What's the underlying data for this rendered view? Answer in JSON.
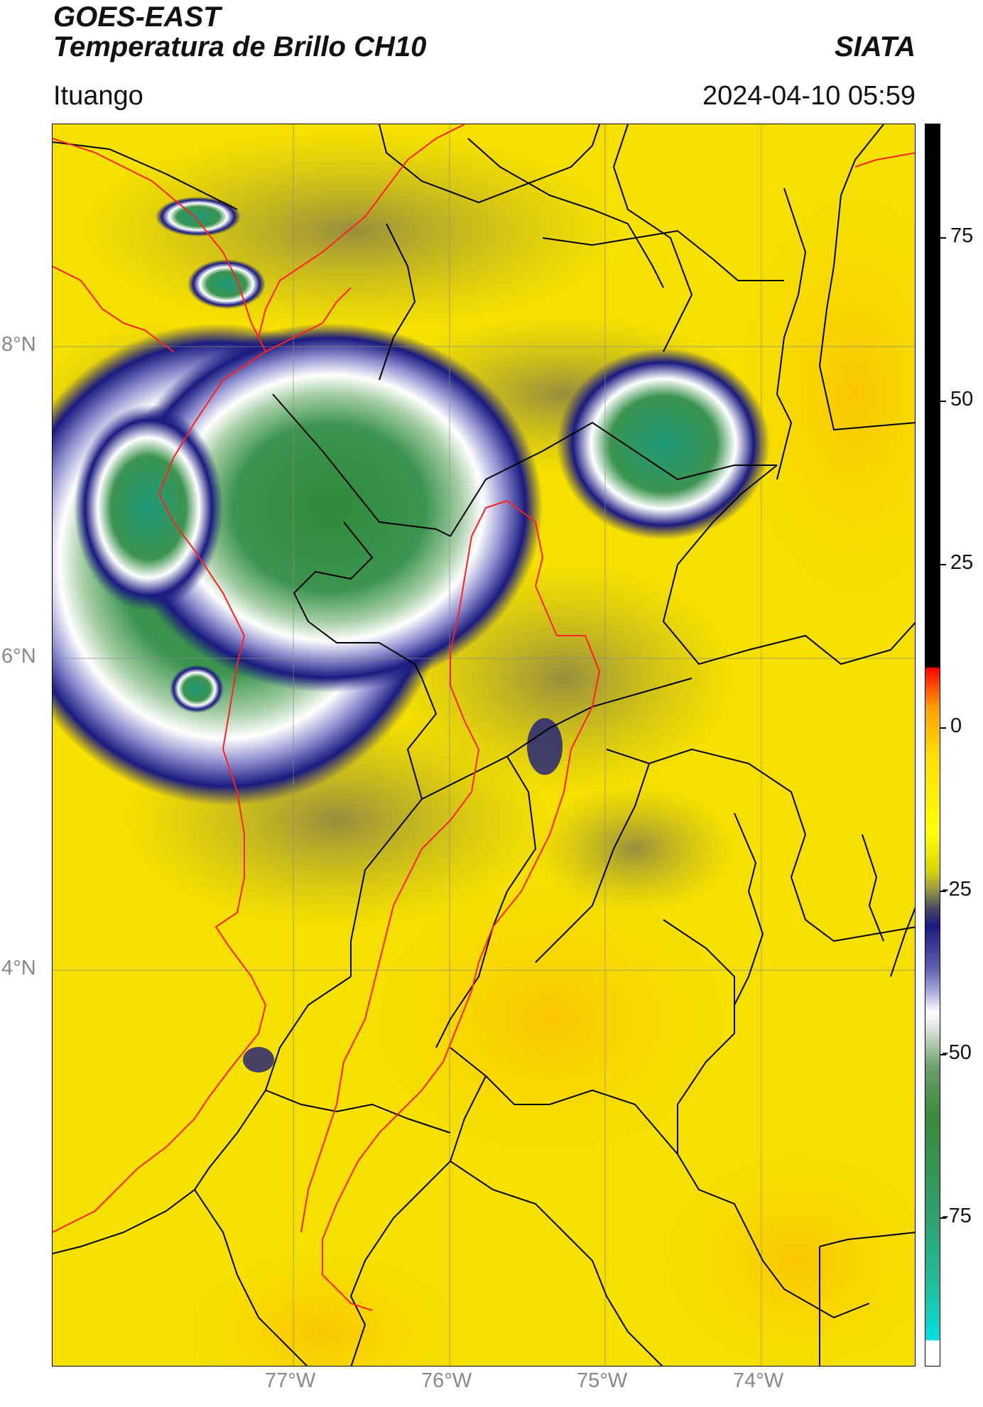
{
  "header": {
    "satellite": "GOES-EAST",
    "product": "Temperatura de Brillo CH10",
    "organization": "SIATA",
    "location": "Ituango",
    "timestamp": "2024-04-10 05:59"
  },
  "map": {
    "lat_labels": [
      "8°N",
      "6°N",
      "4°N"
    ],
    "lon_labels": [
      "77°W",
      "76°W",
      "75°W",
      "74°W"
    ],
    "gridlines": true,
    "background_color": "#f2dc00",
    "cold_cloud_colors": [
      "#1a1a80",
      "#ffffff",
      "#3a8a3a"
    ],
    "border_colors": [
      "#000000",
      "#ff0000"
    ]
  },
  "colorbar": {
    "ticks": [
      "75",
      "50",
      "25",
      "0",
      "-25",
      "-50",
      "-75"
    ],
    "orientation": "vertical",
    "placement": "right"
  }
}
